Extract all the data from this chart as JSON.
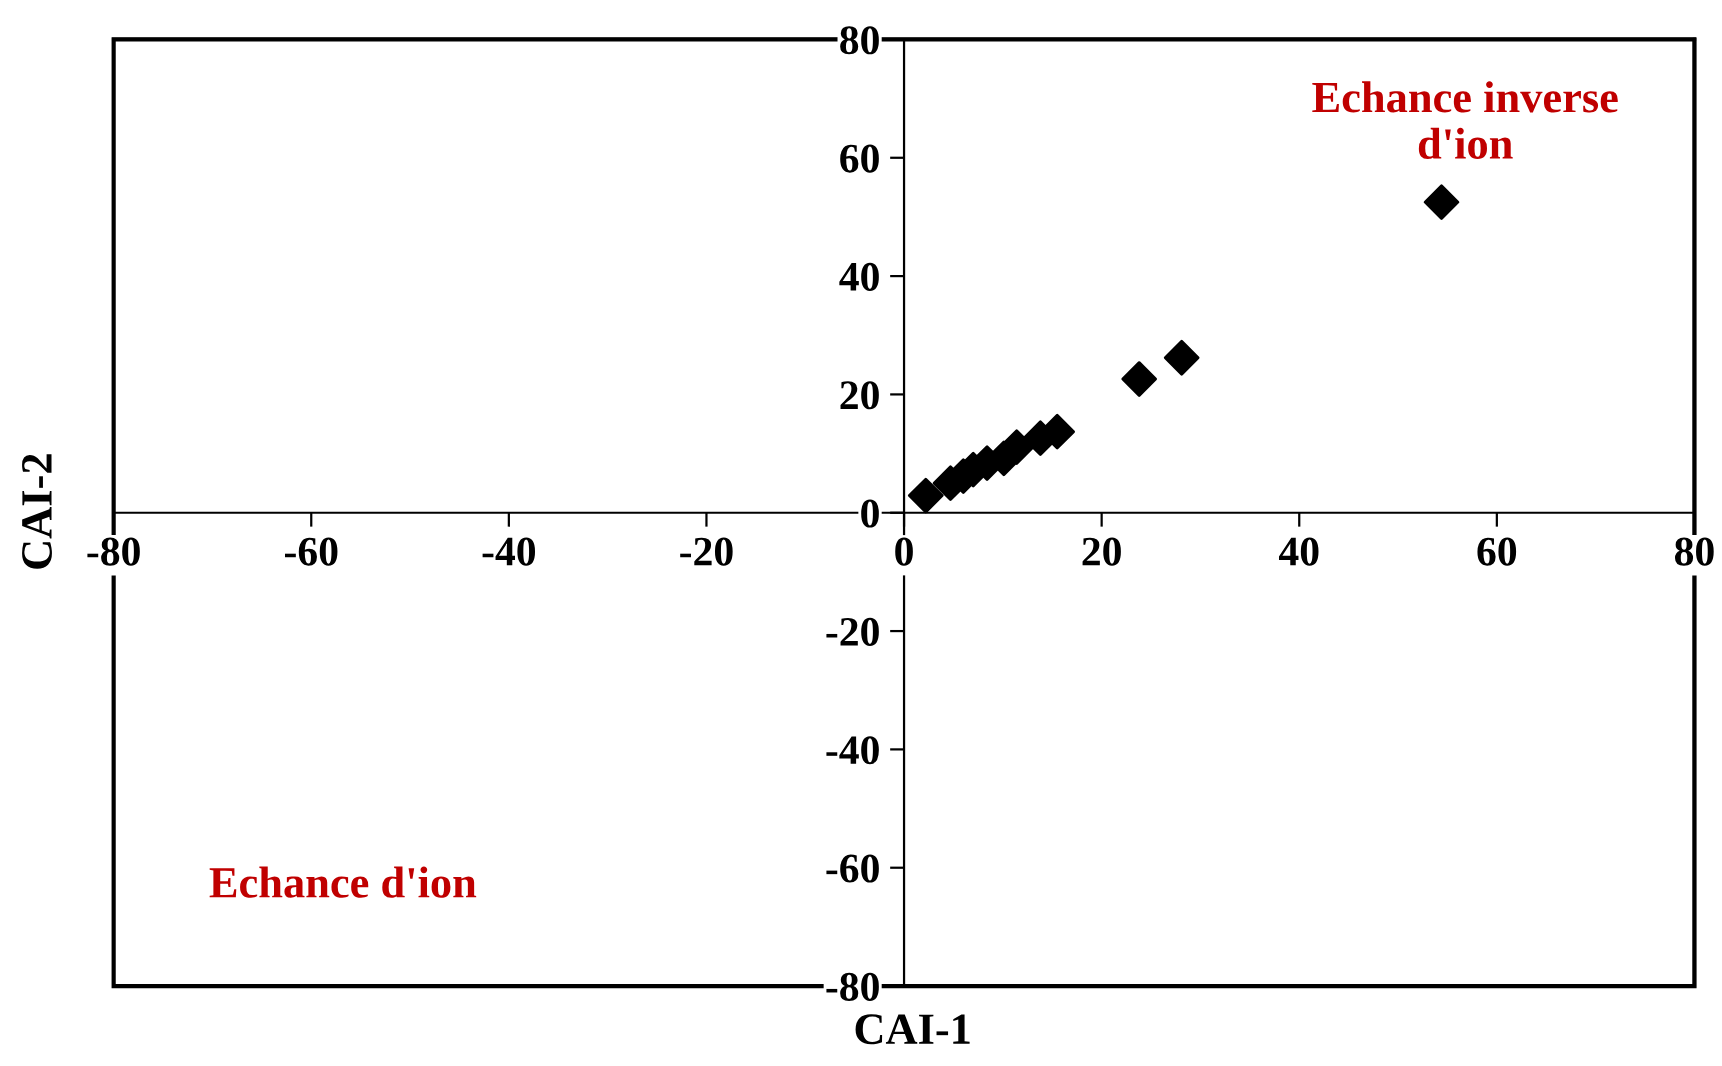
{
  "chart_data": {
    "type": "scatter",
    "xlabel": "CAI-1",
    "ylabel": "CAI-2",
    "marker": "diamond",
    "color": "#000000",
    "x": [
      2.2,
      4.7,
      6.0,
      7.0,
      8.4,
      10.1,
      11.4,
      13.8,
      15.5,
      23.8,
      28.1,
      54.4
    ],
    "values": [
      2.9,
      5.0,
      6.2,
      7.3,
      8.4,
      9.2,
      11.1,
      12.6,
      13.7,
      22.6,
      26.2,
      52.5
    ],
    "xlim": [
      -80,
      80
    ],
    "ylim": [
      -80,
      80
    ],
    "xticks": [
      -80,
      -60,
      -40,
      -20,
      0,
      20,
      40,
      60,
      80
    ],
    "yticks": [
      -80,
      -60,
      -40,
      -20,
      0,
      20,
      40,
      60,
      80
    ],
    "grid": false,
    "legend": false,
    "annotations": [
      "Echance inverse\nd'ion",
      "Echance d'ion"
    ]
  }
}
